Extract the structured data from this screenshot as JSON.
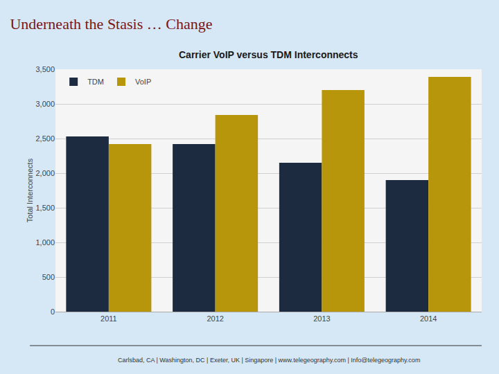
{
  "chart_data": {
    "type": "bar",
    "title": "Underneath the Stasis … Change",
    "subtitle": "Carrier VoIP versus TDM Interconnects",
    "categories": [
      "2011",
      "2012",
      "2013",
      "2014"
    ],
    "series": [
      {
        "name": "TDM",
        "color": "#1c2b40",
        "values": [
          2530,
          2420,
          2150,
          1900
        ]
      },
      {
        "name": "VoIP",
        "color": "#b8960c",
        "values": [
          2420,
          2840,
          3200,
          3390
        ]
      }
    ],
    "ylabel": "Total Interconnects",
    "ylim": [
      0,
      3500
    ],
    "yticks": [
      0,
      500,
      {
        "value": 1000,
        "label": "1,000"
      },
      {
        "value": 1500,
        "label": "1,500"
      },
      {
        "value": 2000,
        "label": "2,000"
      },
      {
        "value": 2500,
        "label": "2,500"
      },
      {
        "value": 3000,
        "label": "3,000"
      },
      {
        "value": 3500,
        "label": "3,500"
      }
    ],
    "grid": true,
    "legend": "upper left",
    "annotations": [
      "Carlsbad, CA | Washington, DC | Exeter, UK | Singapore | www.telegeography.com | Info@telegeography.com"
    ]
  }
}
